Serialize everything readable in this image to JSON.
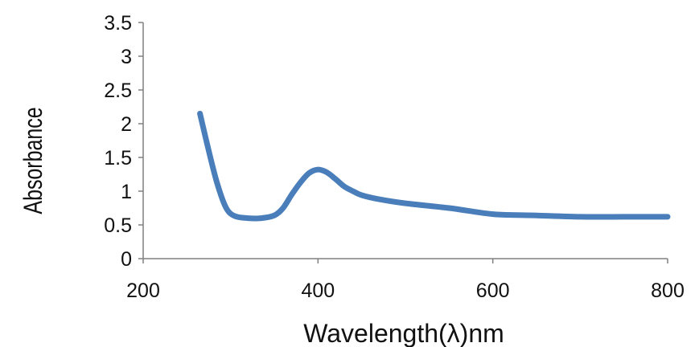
{
  "chart_data": {
    "type": "line",
    "xlabel": "Wavelength(λ)nm",
    "ylabel": "Absorbance",
    "xlim": [
      200,
      800
    ],
    "ylim": [
      0,
      3.5
    ],
    "x_ticks": [
      "200",
      "400",
      "600",
      "800"
    ],
    "y_ticks": [
      "0",
      "0.5",
      "1",
      "1.5",
      "2",
      "2.5",
      "3",
      "3.5"
    ],
    "grid": false,
    "legend": "none",
    "series": [
      {
        "color": "#4a7ebb",
        "x": [
          265,
          275,
          285,
          295,
          305,
          320,
          335,
          350,
          360,
          370,
          380,
          390,
          400,
          410,
          420,
          430,
          440,
          450,
          470,
          500,
          550,
          600,
          650,
          700,
          750,
          800
        ],
        "y": [
          2.15,
          1.6,
          1.1,
          0.75,
          0.63,
          0.6,
          0.6,
          0.64,
          0.75,
          0.95,
          1.13,
          1.27,
          1.32,
          1.28,
          1.18,
          1.07,
          1.0,
          0.94,
          0.88,
          0.82,
          0.75,
          0.66,
          0.64,
          0.62,
          0.62,
          0.62
        ]
      }
    ]
  }
}
